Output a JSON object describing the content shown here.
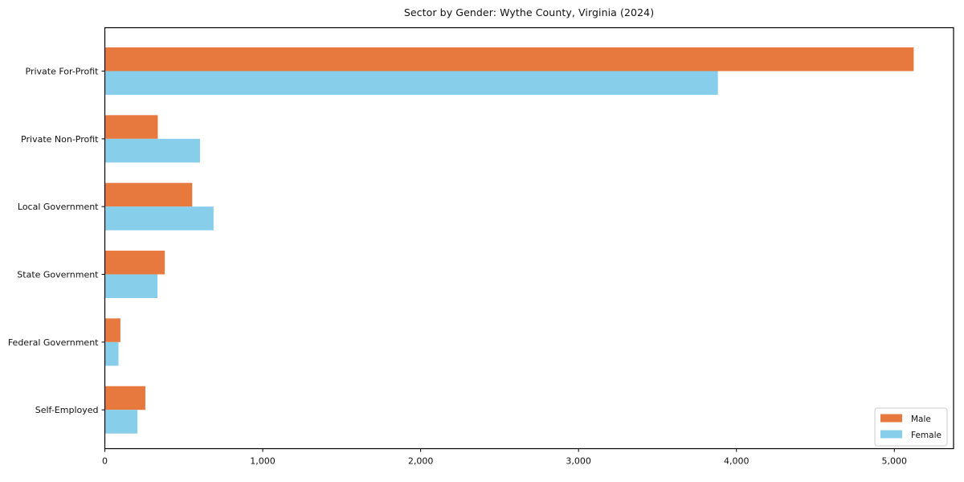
{
  "figure": {
    "background": "#ffffff",
    "axis_color": "#000000",
    "text_color": "#111111"
  },
  "chart_data": {
    "type": "bar",
    "orientation": "horizontal",
    "title": "Sector by Gender: Wythe County, Virginia (2024)",
    "categories": [
      "Private For-Profit",
      "Private Non-Profit",
      "Local Government",
      "State Government",
      "Federal Government",
      "Self-Employed"
    ],
    "series": [
      {
        "name": "Male",
        "color": "#e8793e",
        "values": [
          5120,
          333,
          551,
          377,
          96,
          254
        ]
      },
      {
        "name": "Female",
        "color": "#87ceeb",
        "values": [
          3880,
          600,
          686,
          331,
          84,
          204
        ]
      }
    ],
    "xlabel": "",
    "ylabel": "",
    "xlim": [
      0,
      5375
    ],
    "xticks": [
      0,
      1000,
      2000,
      3000,
      4000,
      5000
    ],
    "xtick_labels": [
      "0",
      "1,000",
      "2,000",
      "3,000",
      "4,000",
      "5,000"
    ],
    "grid": false,
    "legend": {
      "position": "lower right",
      "entries": [
        {
          "label": "Male",
          "color": "#e8793e"
        },
        {
          "label": "Female",
          "color": "#87ceeb"
        }
      ],
      "border_color": "#cccccc",
      "fill": "#ffffff"
    }
  }
}
